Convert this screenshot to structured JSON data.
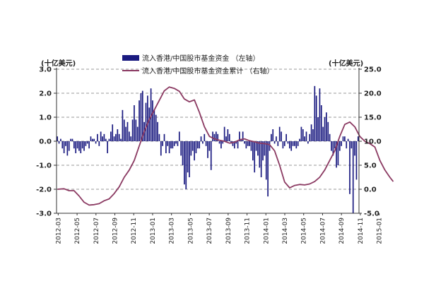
{
  "chart_data": {
    "type": "bar+line",
    "left_axis": {
      "unit": "(十亿美元)",
      "ylim": [
        -3.0,
        3.0
      ],
      "ticks": [
        "3.0",
        "2.0",
        "1.0",
        "0.0",
        "-1.0",
        "-2.0",
        "-3.0"
      ]
    },
    "right_axis": {
      "unit": "(十亿美元)",
      "ylim": [
        -5.0,
        25.0
      ],
      "ticks": [
        "25.0",
        "20.0",
        "15.0",
        "10.0",
        "5.0",
        "0.0",
        "-5.0"
      ]
    },
    "x_ticks": [
      "2012-03",
      "2012-05",
      "2012-07",
      "2012-09",
      "2012-11",
      "2013-01",
      "2013-03",
      "2013-05",
      "2013-07",
      "2013-09",
      "2013-11",
      "2014-01",
      "2014-03",
      "2014-05",
      "2014-07",
      "2014-09",
      "2014-11",
      "2015-01"
    ],
    "legend": [
      {
        "label": "流入香港/中国股市基金资金 （左轴）",
        "kind": "bar",
        "color": "#1a1a80"
      },
      {
        "label": "流入香港/中国股市基金资金累计 （右轴）",
        "kind": "line",
        "color": "#8b3a62"
      }
    ],
    "grid": "horizontal dashed",
    "series": [
      {
        "name": "流入香港/中国股市基金资金 （左轴）",
        "axis": "left",
        "values": [
          0.2,
          -0.1,
          0.1,
          -0.3,
          -0.5,
          -0.2,
          -0.6,
          -0.4,
          0.1,
          0.1,
          -0.3,
          -0.5,
          -0.3,
          -0.4,
          -0.5,
          -0.3,
          -0.4,
          -0.2,
          -0.1,
          -0.3,
          0.2,
          0.1,
          0.1,
          -0.1,
          0.3,
          -0.2,
          0.4,
          0.2,
          0.3,
          0.1,
          -0.5,
          0.1,
          0.4,
          0.7,
          0.2,
          0.3,
          0.5,
          0.3,
          0.1,
          1.3,
          0.9,
          0.6,
          0.8,
          0.4,
          0.2,
          0.9,
          1.5,
          0.9,
          0.6,
          1.7,
          2.0,
          2.1,
          0.8,
          1.6,
          1.9,
          1.4,
          2.2,
          1.7,
          1.3,
          1.1,
          0.8,
          0.3,
          -0.6,
          -0.2,
          0.3,
          -0.5,
          -0.2,
          -0.5,
          -0.3,
          -0.3,
          -0.2,
          -0.1,
          -0.2,
          0.4,
          -0.6,
          -1.0,
          -1.8,
          -2.0,
          -1.3,
          -1.5,
          -0.6,
          -0.4,
          -0.8,
          -0.5,
          -0.3,
          -0.3,
          0.2,
          -0.1,
          0.3,
          -0.2,
          -0.7,
          -0.4,
          -1.2,
          0.4,
          0.3,
          0.4,
          0.3,
          -0.1,
          -0.3,
          -0.1,
          0.6,
          0.2,
          0.5,
          0.3,
          -0.1,
          -0.2,
          -0.3,
          -0.1,
          -0.3,
          0.4,
          0.1,
          0.4,
          -0.1,
          -0.3,
          -0.2,
          -0.2,
          -0.4,
          -0.8,
          -1.3,
          -0.4,
          -0.6,
          -1.1,
          -1.5,
          -0.8,
          -0.6,
          -1.6,
          -2.3,
          -0.4,
          0.3,
          0.5,
          -0.1,
          0.2,
          -0.2,
          0.6,
          0.4,
          -0.3,
          -0.2,
          0.3,
          -0.1,
          -0.3,
          -0.4,
          -0.2,
          -0.2,
          -0.3,
          -0.2,
          0.1,
          0.6,
          0.5,
          0.2,
          0.4,
          -0.1,
          0.3,
          0.7,
          0.5,
          2.3,
          1.9,
          1.0,
          2.2,
          1.5,
          0.6,
          1.0,
          1.2,
          0.8,
          0.3,
          -0.4,
          -0.6,
          -0.3,
          -1.1,
          -1.0,
          -0.4,
          -0.2,
          0.2,
          0.2,
          -0.3,
          0.1,
          -2.2,
          -0.3,
          -3.0,
          -0.6,
          -1.6,
          0.2
        ]
      },
      {
        "name": "流入香港/中国股市基金资金累计 （右轴）",
        "axis": "right",
        "points": [
          [
            0,
            0.0
          ],
          [
            4,
            0.1
          ],
          [
            7,
            -0.3
          ],
          [
            10,
            -0.3
          ],
          [
            13,
            -1.4
          ],
          [
            16,
            -2.7
          ],
          [
            19,
            -3.3
          ],
          [
            22,
            -3.2
          ],
          [
            25,
            -3.0
          ],
          [
            28,
            -2.4
          ],
          [
            31,
            -2.0
          ],
          [
            34,
            -0.9
          ],
          [
            37,
            0.5
          ],
          [
            40,
            2.5
          ],
          [
            43,
            4.0
          ],
          [
            46,
            6.0
          ],
          [
            49,
            9.0
          ],
          [
            52,
            12.0
          ],
          [
            55,
            14.5
          ],
          [
            58,
            16.5
          ],
          [
            61,
            18.5
          ],
          [
            64,
            20.5
          ],
          [
            67,
            21.3
          ],
          [
            70,
            21.0
          ],
          [
            73,
            20.4
          ],
          [
            76,
            18.8
          ],
          [
            79,
            18.2
          ],
          [
            82,
            18.6
          ],
          [
            85,
            16.0
          ],
          [
            88,
            13.0
          ],
          [
            91,
            11.0
          ],
          [
            94,
            10.5
          ],
          [
            97,
            10.2
          ],
          [
            100,
            10.0
          ],
          [
            103,
            9.6
          ],
          [
            106,
            9.8
          ],
          [
            109,
            10.3
          ],
          [
            112,
            10.5
          ],
          [
            115,
            10.1
          ],
          [
            118,
            9.9
          ],
          [
            121,
            9.6
          ],
          [
            124,
            9.5
          ],
          [
            127,
            9.3
          ],
          [
            130,
            8.0
          ],
          [
            133,
            5.0
          ],
          [
            136,
            1.5
          ],
          [
            139,
            0.3
          ],
          [
            142,
            0.8
          ],
          [
            145,
            1.0
          ],
          [
            148,
            0.9
          ],
          [
            151,
            1.1
          ],
          [
            154,
            1.6
          ],
          [
            157,
            2.5
          ],
          [
            160,
            4.0
          ],
          [
            163,
            6.0
          ],
          [
            166,
            8.0
          ],
          [
            169,
            11.0
          ],
          [
            172,
            13.5
          ],
          [
            175,
            14.0
          ],
          [
            178,
            13.0
          ],
          [
            181,
            11.0
          ],
          [
            184,
            10.0
          ],
          [
            187,
            9.5
          ],
          [
            190,
            8.8
          ],
          [
            193,
            6.0
          ],
          [
            196,
            4.0
          ],
          [
            199,
            2.5
          ],
          [
            201,
            1.6
          ]
        ]
      }
    ]
  }
}
